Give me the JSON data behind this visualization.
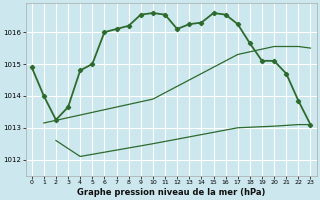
{
  "title": "Graphe pression niveau de la mer (hPa)",
  "background_color": "#cce8ee",
  "grid_color": "#ffffff",
  "line_color": "#2d6a2d",
  "ylim": [
    1011.5,
    1016.9
  ],
  "yticks": [
    1012,
    1013,
    1014,
    1015,
    1016
  ],
  "xlim": [
    -0.5,
    23.5
  ],
  "x_ticks": [
    0,
    1,
    2,
    3,
    4,
    5,
    6,
    7,
    8,
    9,
    10,
    11,
    12,
    13,
    14,
    15,
    16,
    17,
    18,
    19,
    20,
    21,
    22,
    23
  ],
  "main_x": [
    0,
    1,
    2,
    3,
    4,
    5,
    6,
    7,
    8,
    9,
    10,
    11,
    12,
    13,
    14,
    15,
    16,
    17,
    18,
    19,
    20,
    21,
    22,
    23
  ],
  "main_y": [
    1014.9,
    1014.0,
    1013.25,
    1013.65,
    1014.8,
    1015.0,
    1016.0,
    1016.1,
    1016.2,
    1016.55,
    1016.6,
    1016.55,
    1016.1,
    1016.25,
    1016.3,
    1016.6,
    1016.55,
    1016.25,
    1015.65,
    1015.1,
    1015.1,
    1014.7,
    1013.85,
    1013.1
  ],
  "upper_x": [
    1,
    4,
    10,
    17,
    20,
    22,
    23
  ],
  "upper_y": [
    1013.15,
    1013.4,
    1013.9,
    1015.3,
    1015.55,
    1015.55,
    1015.5
  ],
  "lower_x": [
    2,
    4,
    10,
    17,
    20,
    22,
    23
  ],
  "lower_y": [
    1012.6,
    1012.1,
    1012.5,
    1013.0,
    1013.05,
    1013.1,
    1013.1
  ]
}
